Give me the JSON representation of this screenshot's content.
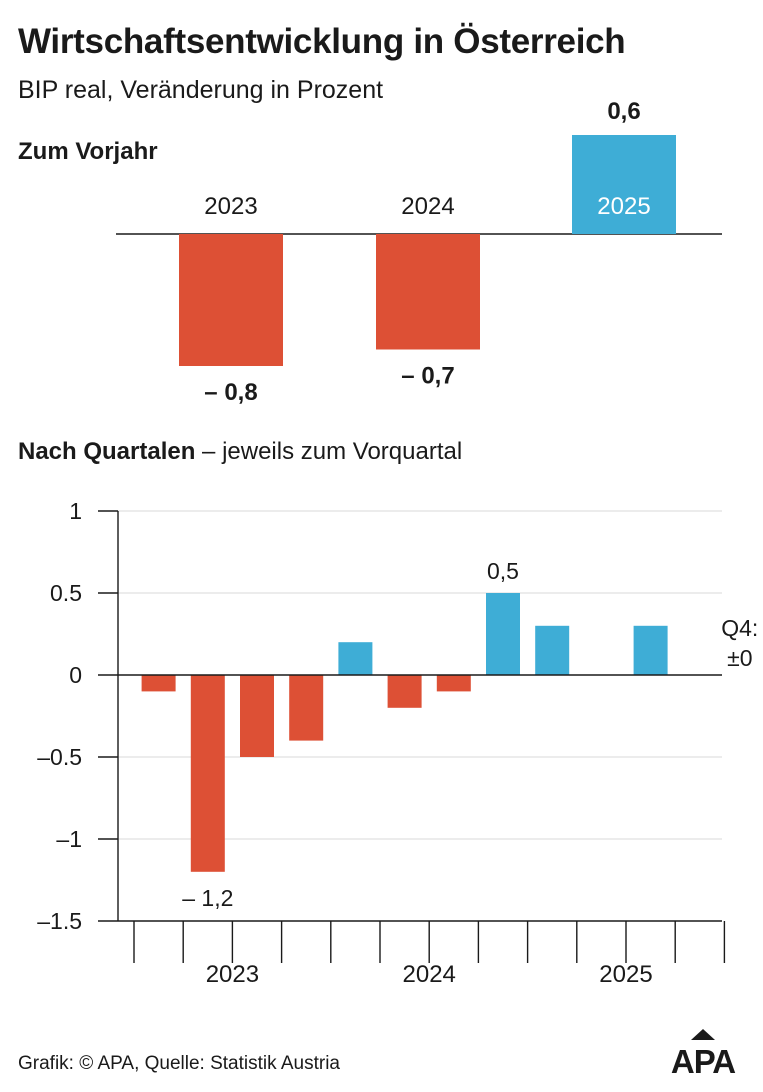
{
  "header": {
    "title": "Wirtschaftsentwicklung in Österreich",
    "subtitle": "BIP real, Veränderung in Prozent"
  },
  "section_annual": {
    "title": "Zum Vorjahr"
  },
  "section_quarterly": {
    "title_bold": "Nach Quartalen",
    "title_rest": " – jeweils zum Vorquartal"
  },
  "footer": {
    "source": "Grafik: © APA, Quelle: Statistik Austria",
    "logo": "APA"
  },
  "colors": {
    "negative": "#dd5035",
    "positive": "#3eadd6",
    "text": "#1a1a1a",
    "grid": "#d9d9d9"
  },
  "chart_data": [
    {
      "type": "bar",
      "title": "Zum Vorjahr",
      "categories": [
        "2023",
        "2024",
        "2025"
      ],
      "values": [
        -0.8,
        -0.7,
        0.6
      ],
      "value_labels": [
        "– 0,8",
        "– 0,7",
        "0,6"
      ],
      "ylim": [
        -0.8,
        0.6
      ]
    },
    {
      "type": "bar",
      "title": "Nach Quartalen – jeweils zum Vorquartal",
      "years": [
        "2023",
        "2024",
        "2025"
      ],
      "quarters": [
        "2023 Q1",
        "2023 Q2",
        "2023 Q3",
        "2023 Q4",
        "2024 Q1",
        "2024 Q2",
        "2024 Q3",
        "2024 Q4",
        "2025 Q1",
        "2025 Q2",
        "2025 Q3",
        "2025 Q4"
      ],
      "values": [
        -0.1,
        -1.2,
        -0.5,
        -0.4,
        0.2,
        -0.2,
        -0.1,
        0.5,
        0.3,
        0.0,
        0.3,
        0.0
      ],
      "y_ticks": [
        1,
        0.5,
        0,
        -0.5,
        -1,
        -1.5
      ],
      "y_tick_labels": [
        "1",
        "0.5",
        "0",
        "–0.5",
        "–1",
        "–1.5"
      ],
      "ylim": [
        -1.5,
        1
      ],
      "annotations": [
        {
          "quarter": "2023 Q2",
          "text": "– 1,2"
        },
        {
          "quarter": "2024 Q4",
          "text": "0,5"
        },
        {
          "quarter": "2025 Q4",
          "text": "Q4:",
          "text2": "±0"
        }
      ]
    }
  ]
}
